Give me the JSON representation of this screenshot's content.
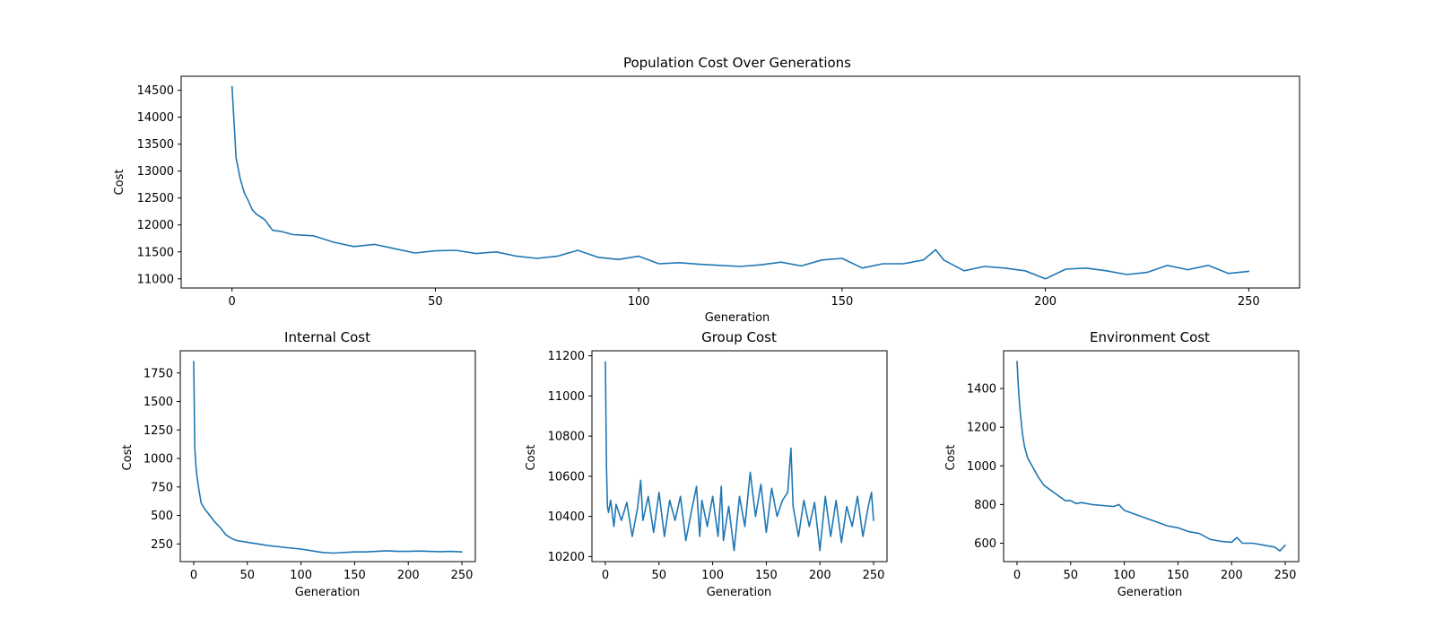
{
  "chart_data": [
    {
      "type": "line",
      "title": "Population Cost Over Generations",
      "xlabel": "Generation",
      "ylabel": "Cost",
      "xlim": [
        -12.5,
        262.5
      ],
      "ylim": [
        10830,
        14760
      ],
      "xticks": [
        0,
        50,
        100,
        150,
        200,
        250
      ],
      "yticks": [
        11000,
        11500,
        12000,
        12500,
        13000,
        13500,
        14000,
        14500
      ],
      "grid": false,
      "color": "#1f77b4",
      "series": [
        {
          "x": [
            0,
            1,
            2,
            3,
            4,
            5,
            6,
            8,
            10,
            12,
            15,
            20,
            25,
            30,
            35,
            40,
            45,
            50,
            55,
            60,
            65,
            70,
            75,
            80,
            85,
            90,
            95,
            100,
            105,
            110,
            115,
            120,
            125,
            130,
            135,
            140,
            145,
            150,
            155,
            160,
            165,
            170,
            173,
            175,
            180,
            185,
            190,
            195,
            200,
            205,
            210,
            215,
            220,
            225,
            230,
            235,
            240,
            245,
            250
          ],
          "values": [
            14570,
            13250,
            12860,
            12600,
            12450,
            12280,
            12200,
            12100,
            11900,
            11880,
            11820,
            11800,
            11680,
            11600,
            11640,
            11560,
            11480,
            11520,
            11530,
            11470,
            11500,
            11420,
            11380,
            11420,
            11530,
            11400,
            11360,
            11420,
            11280,
            11300,
            11270,
            11250,
            11230,
            11260,
            11310,
            11240,
            11350,
            11380,
            11200,
            11280,
            11280,
            11350,
            11540,
            11350,
            11150,
            11230,
            11200,
            11150,
            11000,
            11180,
            11200,
            11150,
            11080,
            11120,
            11250,
            11170,
            11250,
            11100,
            11140
          ]
        }
      ]
    },
    {
      "type": "line",
      "title": "Internal Cost",
      "xlabel": "Generation",
      "ylabel": "Cost",
      "xlim": [
        -12.5,
        262.5
      ],
      "ylim": [
        95,
        1945
      ],
      "xticks": [
        0,
        50,
        100,
        150,
        200,
        250
      ],
      "yticks": [
        250,
        500,
        750,
        1000,
        1250,
        1500,
        1750
      ],
      "grid": false,
      "color": "#1f77b4",
      "series": [
        {
          "x": [
            0,
            1,
            2,
            3,
            5,
            7,
            10,
            15,
            20,
            25,
            30,
            35,
            40,
            50,
            60,
            70,
            80,
            90,
            100,
            110,
            120,
            130,
            140,
            150,
            160,
            170,
            180,
            190,
            200,
            210,
            220,
            230,
            240,
            250
          ],
          "values": [
            1850,
            1100,
            950,
            850,
            720,
            610,
            560,
            500,
            440,
            390,
            330,
            300,
            280,
            265,
            250,
            235,
            225,
            215,
            205,
            190,
            175,
            170,
            175,
            180,
            180,
            185,
            190,
            185,
            185,
            188,
            185,
            182,
            185,
            180
          ]
        }
      ]
    },
    {
      "type": "line",
      "title": "Group Cost",
      "xlabel": "Generation",
      "ylabel": "Cost",
      "xlim": [
        -12.5,
        262.5
      ],
      "ylim": [
        10175,
        11225
      ],
      "xticks": [
        0,
        50,
        100,
        150,
        200,
        250
      ],
      "yticks": [
        10200,
        10400,
        10600,
        10800,
        11000,
        11200
      ],
      "grid": false,
      "color": "#1f77b4",
      "series": [
        {
          "x": [
            0,
            1,
            2,
            3,
            5,
            8,
            10,
            15,
            20,
            25,
            30,
            33,
            35,
            40,
            45,
            50,
            55,
            60,
            65,
            70,
            75,
            80,
            85,
            88,
            90,
            95,
            100,
            105,
            108,
            110,
            115,
            120,
            125,
            130,
            135,
            140,
            145,
            150,
            155,
            160,
            165,
            170,
            173,
            175,
            180,
            185,
            190,
            195,
            200,
            205,
            210,
            215,
            220,
            225,
            230,
            235,
            240,
            245,
            248,
            250
          ],
          "values": [
            11170,
            10650,
            10450,
            10420,
            10480,
            10350,
            10460,
            10380,
            10470,
            10300,
            10440,
            10580,
            10380,
            10500,
            10320,
            10520,
            10300,
            10480,
            10380,
            10500,
            10280,
            10420,
            10550,
            10300,
            10480,
            10350,
            10500,
            10300,
            10550,
            10280,
            10450,
            10230,
            10500,
            10350,
            10620,
            10400,
            10560,
            10320,
            10540,
            10400,
            10480,
            10520,
            10740,
            10450,
            10300,
            10480,
            10350,
            10470,
            10230,
            10500,
            10300,
            10480,
            10270,
            10450,
            10350,
            10500,
            10300,
            10450,
            10520,
            10380
          ]
        }
      ]
    },
    {
      "type": "line",
      "title": "Environment Cost",
      "xlabel": "Generation",
      "ylabel": "Cost",
      "xlim": [
        -12.5,
        262.5
      ],
      "ylim": [
        505,
        1595
      ],
      "xticks": [
        0,
        50,
        100,
        150,
        200,
        250
      ],
      "yticks": [
        600,
        800,
        1000,
        1200,
        1400
      ],
      "grid": false,
      "color": "#1f77b4",
      "series": [
        {
          "x": [
            0,
            1,
            2,
            3,
            5,
            7,
            10,
            15,
            20,
            25,
            30,
            35,
            40,
            45,
            50,
            55,
            60,
            70,
            80,
            90,
            95,
            100,
            110,
            120,
            130,
            140,
            150,
            160,
            170,
            180,
            190,
            200,
            205,
            210,
            220,
            230,
            240,
            245,
            250
          ],
          "values": [
            1540,
            1430,
            1350,
            1280,
            1170,
            1100,
            1040,
            990,
            940,
            900,
            880,
            860,
            840,
            820,
            820,
            805,
            810,
            800,
            795,
            790,
            800,
            770,
            750,
            730,
            710,
            690,
            680,
            660,
            650,
            620,
            610,
            605,
            630,
            600,
            600,
            590,
            580,
            560,
            590
          ]
        }
      ]
    }
  ]
}
